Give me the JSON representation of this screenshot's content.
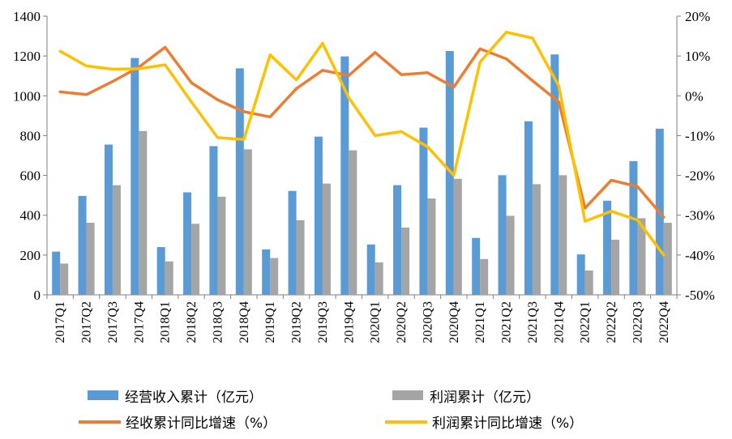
{
  "chart_data": {
    "type": "bar",
    "categories": [
      "2017Q1",
      "2017Q2",
      "2017Q3",
      "2017Q4",
      "2018Q1",
      "2018Q2",
      "2018Q3",
      "2018Q4",
      "2019Q1",
      "2019Q2",
      "2019Q3",
      "2019Q4",
      "2020Q1",
      "2020Q2",
      "2020Q3",
      "2020Q4",
      "2021Q1",
      "2021Q2",
      "2021Q3",
      "2021Q4",
      "2022Q1",
      "2022Q2",
      "2022Q3",
      "2022Q4"
    ],
    "y_left": {
      "min": 0,
      "max": 1400,
      "step": 200,
      "tick_labels": [
        "0",
        "200",
        "400",
        "600",
        "800",
        "1000",
        "1200",
        "1400"
      ]
    },
    "y_right": {
      "min": -50,
      "max": 20,
      "step": 10,
      "tick_labels": [
        "-50%",
        "-40%",
        "-30%",
        "-20%",
        "-10%",
        "0%",
        "10%",
        "20%"
      ]
    },
    "grid": false,
    "legend_position": "bottom",
    "colors": {
      "revenue_bar": "#5b9bd5",
      "profit_bar": "#a5a5a5",
      "revenue_line": "#ed7d31",
      "profit_line": "#ffc000"
    },
    "series": [
      {
        "name": "经营收入累计（亿元）",
        "kind": "bar",
        "axis": "left",
        "values": [
          217,
          497,
          755,
          1190,
          240,
          515,
          747,
          1138,
          228,
          522,
          795,
          1198,
          253,
          551,
          840,
          1225,
          286,
          601,
          872,
          1208,
          203,
          473,
          672,
          835
        ]
      },
      {
        "name": "利润累计（亿元）",
        "kind": "bar",
        "axis": "left",
        "values": [
          157,
          362,
          551,
          823,
          168,
          357,
          493,
          731,
          185,
          375,
          559,
          726,
          163,
          338,
          484,
          583,
          180,
          397,
          556,
          601,
          122,
          277,
          385,
          362
        ]
      },
      {
        "name": "经收累计同比增速（%）",
        "kind": "line",
        "axis": "right",
        "values": [
          1.0,
          0.3,
          3.6,
          7.2,
          12.2,
          3.3,
          -1.0,
          -4.0,
          -5.3,
          1.8,
          6.4,
          5.1,
          10.9,
          5.3,
          5.8,
          2.2,
          11.8,
          9.3,
          3.8,
          -1.5,
          -28.2,
          -21.2,
          -22.8,
          -30.5
        ]
      },
      {
        "name": "利润累计同比增速（%）",
        "kind": "line",
        "axis": "right",
        "values": [
          11.2,
          7.5,
          6.7,
          6.8,
          7.8,
          -1.5,
          -10.5,
          -11.0,
          10.3,
          4.0,
          13.2,
          -0.5,
          -10.0,
          -9.0,
          -12.8,
          -20.0,
          8.5,
          16.0,
          14.5,
          2.5,
          -31.5,
          -29.0,
          -31.2,
          -40.0
        ]
      }
    ]
  }
}
